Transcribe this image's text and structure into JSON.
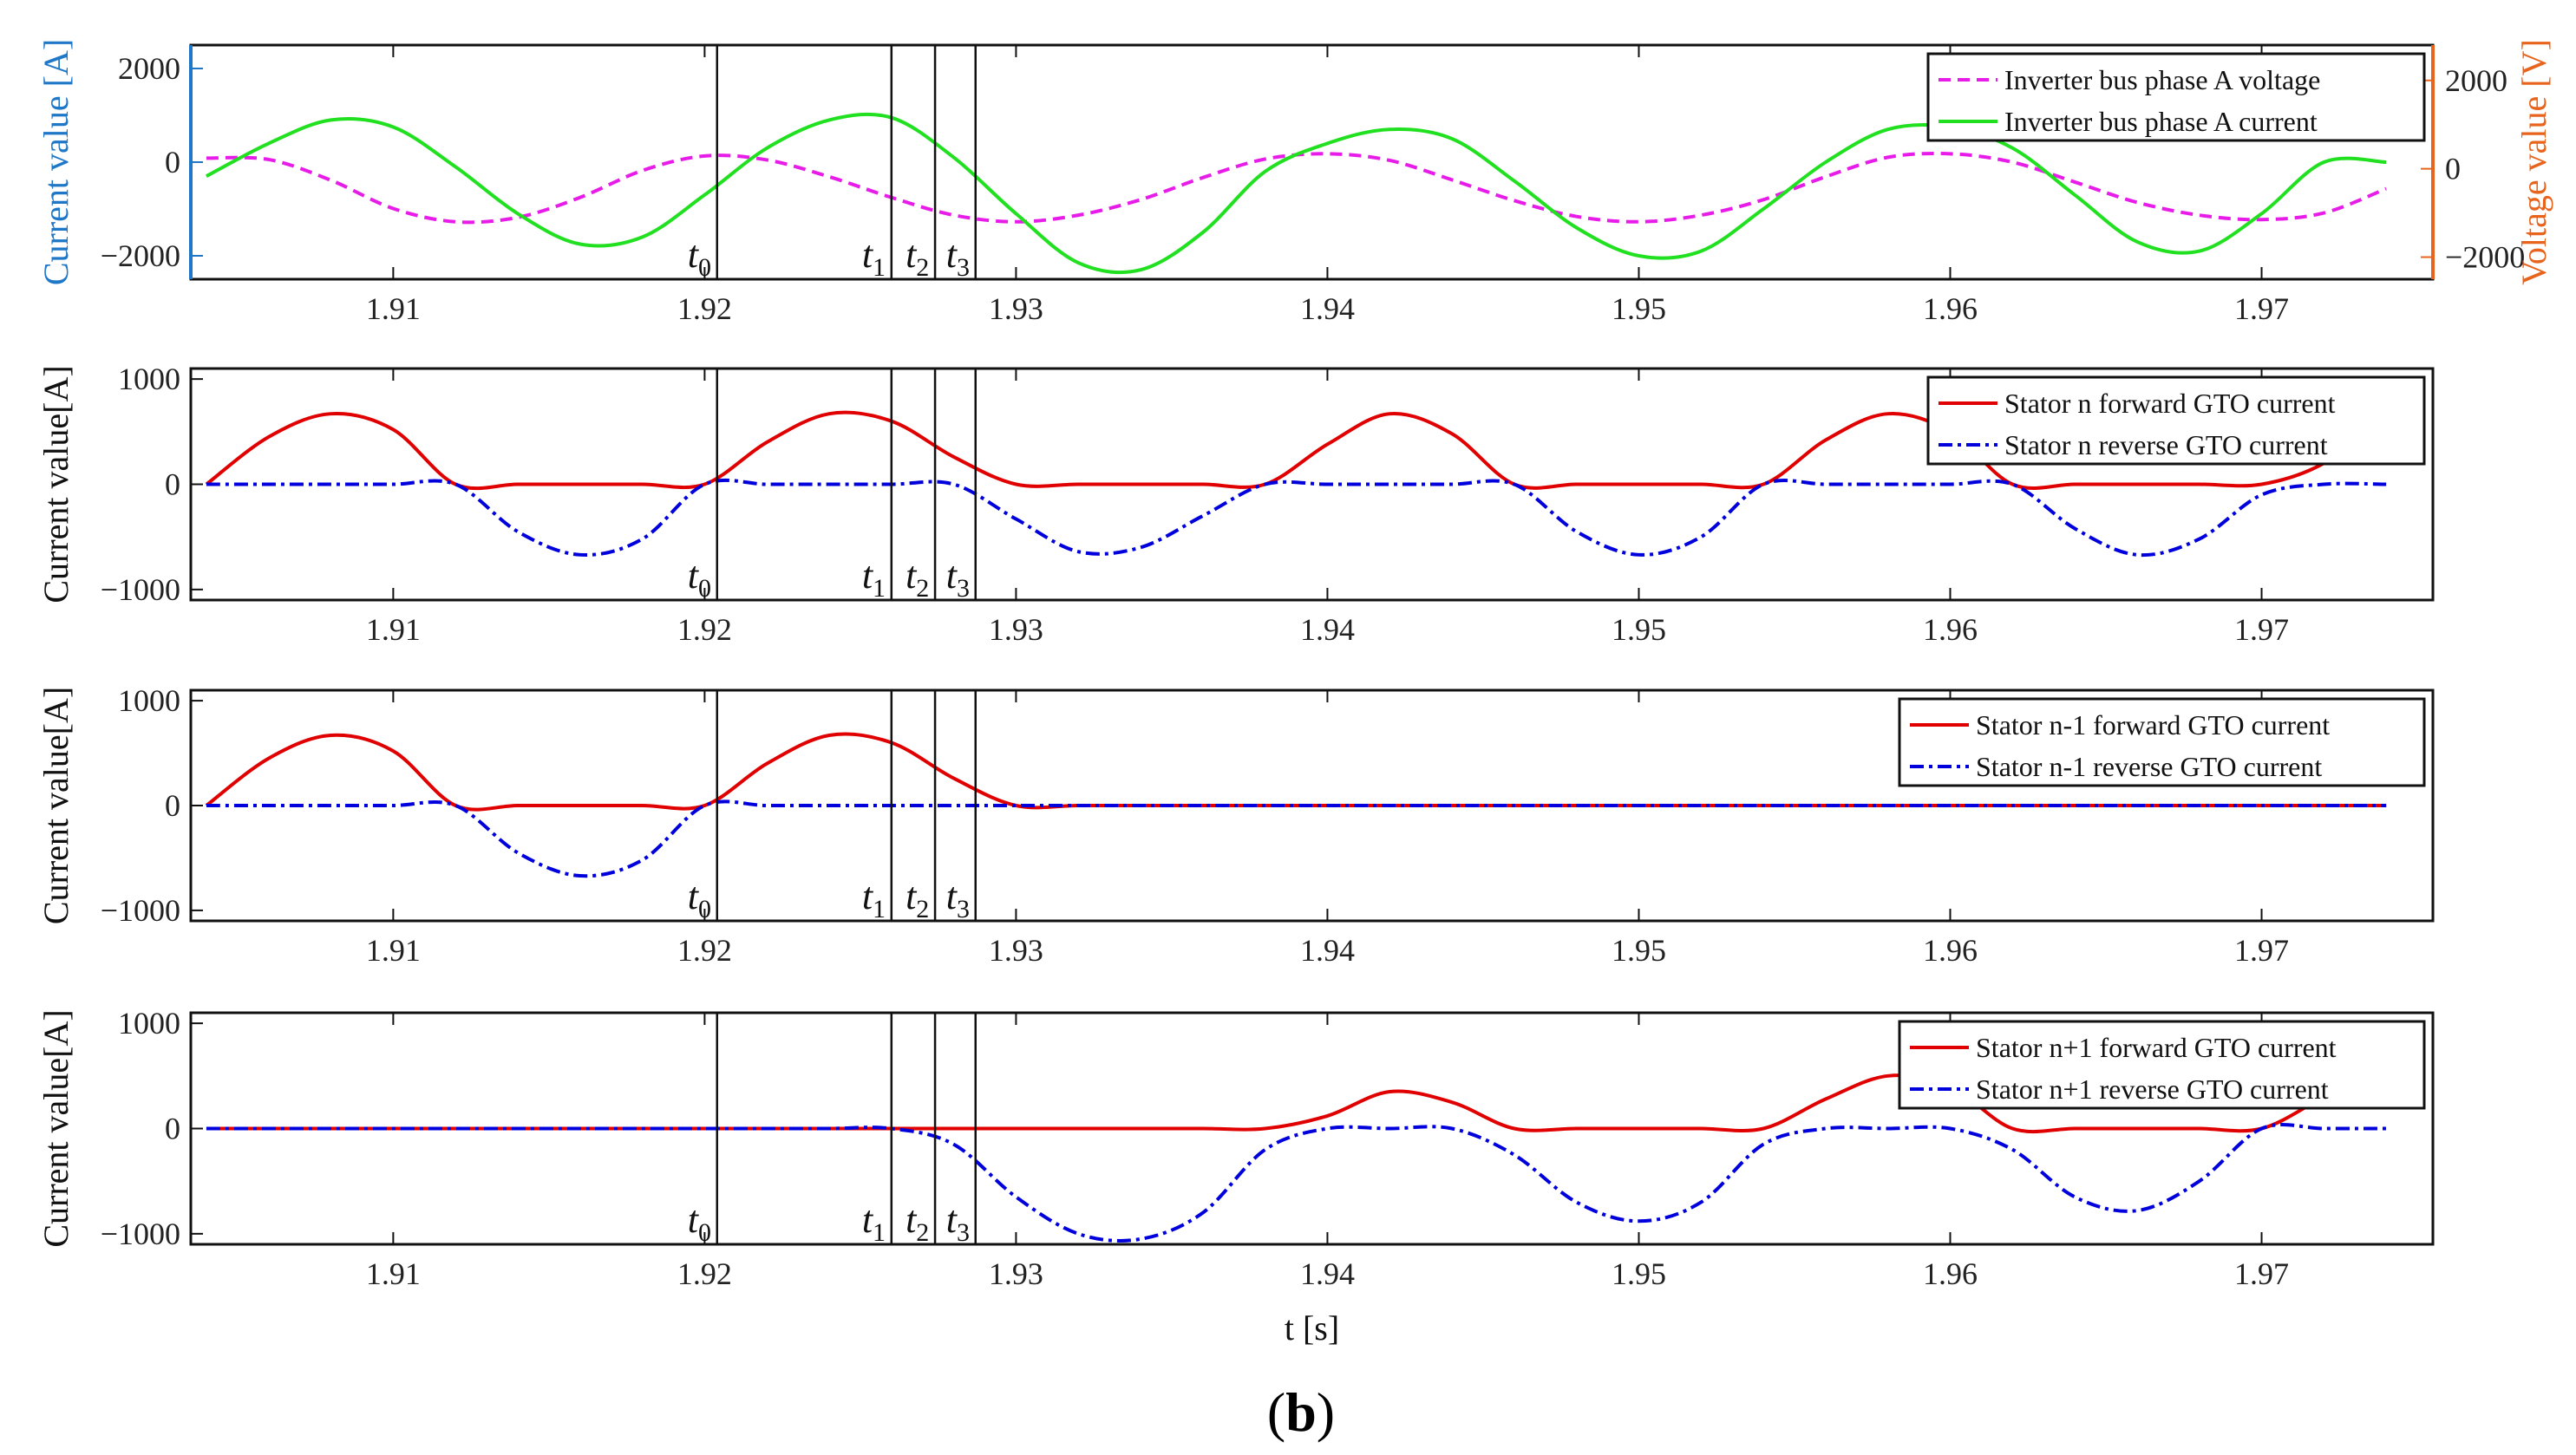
{
  "figure_label": "b",
  "colors": {
    "left_axis": "#1f77c8",
    "right_axis": "#e8641c",
    "voltage": "#e81ce8",
    "current": "#20e020",
    "forward": "#e00000",
    "reverse": "#0000dd"
  },
  "chart_data": [
    {
      "type": "line",
      "x": [
        1.904,
        1.906,
        1.908,
        1.91,
        1.912,
        1.914,
        1.916,
        1.918,
        1.92,
        1.922,
        1.924,
        1.926,
        1.928,
        1.93,
        1.932,
        1.934,
        1.936,
        1.938,
        1.94,
        1.942,
        1.944,
        1.946,
        1.948,
        1.95,
        1.952,
        1.954,
        1.956,
        1.958,
        1.96,
        1.962,
        1.964,
        1.966,
        1.968,
        1.97,
        1.972,
        1.974
      ],
      "x_ticks": [
        "1.91",
        "1.92",
        "1.93",
        "1.94",
        "1.95",
        "1.96",
        "1.97"
      ],
      "xlim": [
        1.9035,
        1.9755
      ],
      "y_ticks_left": [
        "-2000",
        "0",
        "2000"
      ],
      "y_ticks_right": [
        "-2000",
        "0",
        "2000"
      ],
      "ylabel_left": "Current value [A]",
      "ylabel_right": "Voltage value [V]",
      "ylim": [
        -2500,
        2500
      ],
      "ylim_right": [
        -2500,
        2800
      ],
      "grid": false,
      "legend_position": "top-right",
      "series": [
        {
          "name": "Inverter bus phase A voltage",
          "axis": "right",
          "style": "dashed",
          "values": [
            240,
            210,
            -260,
            -900,
            -1200,
            -1100,
            -650,
            -40,
            290,
            200,
            -180,
            -650,
            -1050,
            -1200,
            -1050,
            -700,
            -200,
            220,
            340,
            190,
            -250,
            -720,
            -1080,
            -1200,
            -1050,
            -700,
            -180,
            260,
            340,
            150,
            -300,
            -760,
            -1050,
            -1150,
            -1000,
            -450
          ]
        },
        {
          "name": "Inverter bus phase A current",
          "axis": "left",
          "style": "solid",
          "values": [
            -300,
            400,
            900,
            750,
            -100,
            -1100,
            -1750,
            -1600,
            -700,
            300,
            900,
            950,
            100,
            -1100,
            -2150,
            -2300,
            -1500,
            -200,
            400,
            700,
            500,
            -400,
            -1400,
            -2000,
            -1900,
            -1000,
            0,
            700,
            750,
            300,
            -700,
            -1700,
            -1900,
            -1100,
            0,
            0
          ]
        }
      ]
    },
    {
      "type": "line",
      "x": [
        1.904,
        1.906,
        1.908,
        1.91,
        1.912,
        1.914,
        1.916,
        1.918,
        1.92,
        1.922,
        1.924,
        1.926,
        1.928,
        1.93,
        1.932,
        1.934,
        1.936,
        1.938,
        1.94,
        1.942,
        1.944,
        1.946,
        1.948,
        1.95,
        1.952,
        1.954,
        1.956,
        1.958,
        1.96,
        1.962,
        1.964,
        1.966,
        1.968,
        1.97,
        1.972,
        1.974
      ],
      "x_ticks": [
        "1.91",
        "1.92",
        "1.93",
        "1.94",
        "1.95",
        "1.96",
        "1.97"
      ],
      "xlim": [
        1.9035,
        1.9755
      ],
      "y_ticks": [
        "-1000",
        "0",
        "1000"
      ],
      "ylabel": "Current value[A]",
      "ylim": [
        -1100,
        1100
      ],
      "grid": false,
      "legend_position": "top-right",
      "series": [
        {
          "name": "Stator n forward GTO current",
          "style": "solid",
          "values": [
            0,
            450,
            670,
            520,
            0,
            0,
            0,
            0,
            0,
            400,
            670,
            600,
            260,
            0,
            0,
            0,
            0,
            0,
            380,
            670,
            480,
            0,
            0,
            0,
            0,
            0,
            420,
            670,
            500,
            0,
            0,
            0,
            0,
            0,
            200,
            650
          ]
        },
        {
          "name": "Stator n reverse GTO current",
          "style": "dashdot",
          "values": [
            0,
            0,
            0,
            0,
            0,
            -450,
            -670,
            -520,
            0,
            0,
            0,
            0,
            0,
            -330,
            -640,
            -600,
            -300,
            0,
            0,
            0,
            0,
            0,
            -450,
            -670,
            -500,
            0,
            0,
            0,
            0,
            0,
            -420,
            -670,
            -520,
            -100,
            0,
            0
          ]
        }
      ]
    },
    {
      "type": "line",
      "x": [
        1.904,
        1.906,
        1.908,
        1.91,
        1.912,
        1.914,
        1.916,
        1.918,
        1.92,
        1.922,
        1.924,
        1.926,
        1.928,
        1.93,
        1.932,
        1.934,
        1.936,
        1.938,
        1.94,
        1.942,
        1.944,
        1.946,
        1.948,
        1.95,
        1.952,
        1.954,
        1.956,
        1.958,
        1.96,
        1.962,
        1.964,
        1.966,
        1.968,
        1.97,
        1.972,
        1.974
      ],
      "x_ticks": [
        "1.91",
        "1.92",
        "1.93",
        "1.94",
        "1.95",
        "1.96",
        "1.97"
      ],
      "xlim": [
        1.9035,
        1.9755
      ],
      "y_ticks": [
        "-1000",
        "0",
        "1000"
      ],
      "ylabel": "Current value[A]",
      "ylim": [
        -1100,
        1100
      ],
      "grid": false,
      "legend_position": "top-right",
      "series": [
        {
          "name": "Stator n-1 forward GTO current",
          "style": "solid",
          "values": [
            0,
            450,
            670,
            520,
            0,
            0,
            0,
            0,
            0,
            400,
            670,
            600,
            260,
            0,
            0,
            0,
            0,
            0,
            0,
            0,
            0,
            0,
            0,
            0,
            0,
            0,
            0,
            0,
            0,
            0,
            0,
            0,
            0,
            0,
            0,
            0
          ]
        },
        {
          "name": "Stator n-1 reverse GTO current",
          "style": "dashdot",
          "values": [
            0,
            0,
            0,
            0,
            0,
            -450,
            -670,
            -520,
            0,
            0,
            0,
            0,
            0,
            0,
            0,
            0,
            0,
            0,
            0,
            0,
            0,
            0,
            0,
            0,
            0,
            0,
            0,
            0,
            0,
            0,
            0,
            0,
            0,
            0,
            0,
            0
          ]
        }
      ]
    },
    {
      "type": "line",
      "x": [
        1.904,
        1.906,
        1.908,
        1.91,
        1.912,
        1.914,
        1.916,
        1.918,
        1.92,
        1.922,
        1.924,
        1.926,
        1.928,
        1.93,
        1.932,
        1.934,
        1.936,
        1.938,
        1.94,
        1.942,
        1.944,
        1.946,
        1.948,
        1.95,
        1.952,
        1.954,
        1.956,
        1.958,
        1.96,
        1.962,
        1.964,
        1.966,
        1.968,
        1.97,
        1.972,
        1.974
      ],
      "x_ticks": [
        "1.91",
        "1.92",
        "1.93",
        "1.94",
        "1.95",
        "1.96",
        "1.97"
      ],
      "xlim": [
        1.9035,
        1.9755
      ],
      "y_ticks": [
        "-1000",
        "0",
        "1000"
      ],
      "ylabel": "Current value[A]",
      "xlabel": "t [s]",
      "ylim": [
        -1100,
        1100
      ],
      "grid": false,
      "legend_position": "top-right",
      "series": [
        {
          "name": "Stator n+1 forward GTO current",
          "style": "solid",
          "values": [
            0,
            0,
            0,
            0,
            0,
            0,
            0,
            0,
            0,
            0,
            0,
            0,
            0,
            0,
            0,
            0,
            0,
            0,
            120,
            350,
            250,
            0,
            0,
            0,
            0,
            0,
            280,
            500,
            400,
            0,
            0,
            0,
            0,
            0,
            300,
            600
          ]
        },
        {
          "name": "Stator n+1 reverse GTO current",
          "style": "dashdot",
          "values": [
            0,
            0,
            0,
            0,
            0,
            0,
            0,
            0,
            0,
            0,
            0,
            0,
            -150,
            -650,
            -1000,
            -1050,
            -800,
            -200,
            0,
            0,
            0,
            -250,
            -700,
            -880,
            -700,
            -150,
            0,
            0,
            0,
            -200,
            -650,
            -780,
            -500,
            0,
            0,
            0
          ]
        }
      ]
    }
  ],
  "markers": [
    {
      "label": "t",
      "sub": "0",
      "x": 1.9204
    },
    {
      "label": "t",
      "sub": "1",
      "x": 1.926
    },
    {
      "label": "t",
      "sub": "2",
      "x": 1.9274
    },
    {
      "label": "t",
      "sub": "3",
      "x": 1.9287
    }
  ]
}
